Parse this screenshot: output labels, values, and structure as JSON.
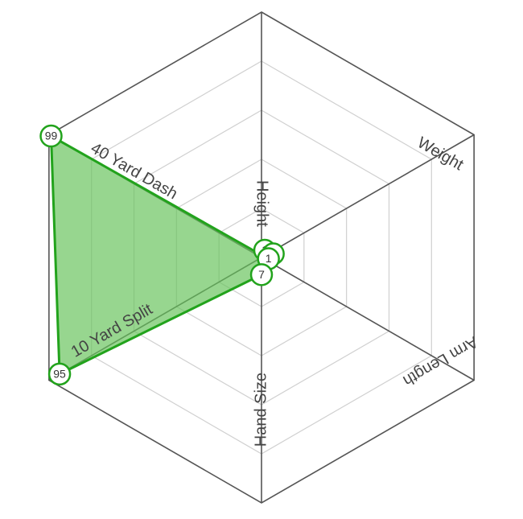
{
  "chart_data": {
    "type": "radar",
    "axes": [
      "Height",
      "Weight",
      "Arm Length",
      "Hand Size",
      "10 Yard Split",
      "40 Yard Dash"
    ],
    "series": [
      {
        "values": [
          1,
          1,
          1,
          7,
          95,
          99
        ]
      }
    ],
    "point_labels": [
      "1",
      "1",
      "1",
      "7",
      "95",
      "99"
    ],
    "range": [
      0,
      100
    ],
    "grid_rings": 5,
    "colors": {
      "series_fill": "#66c25a",
      "series_stroke": "#22a31c",
      "grid": "#d0d0d0",
      "frame": "#555555",
      "label": "#444444"
    }
  }
}
